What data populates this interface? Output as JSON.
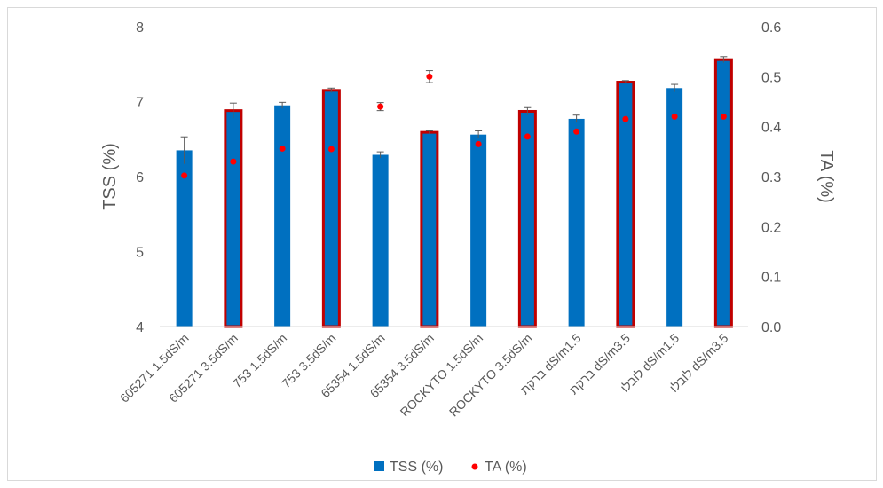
{
  "chart_data": {
    "type": "bar",
    "title": "",
    "categories": [
      "605271 1.5dS/m",
      "605271 3.5dS/m",
      "753 1.5dS/m",
      "753 3.5dS/m",
      "65354 1.5dS/m",
      "65354 3.5dS/m",
      "ROCKYTO 1.5dS/m",
      "ROCKYTO 3.5dS/m",
      "ברקת dS/m1.5",
      "ברקת dS/m3.5",
      "לובלו dS/m1.5",
      "לובלו dS/m3.5"
    ],
    "highlighted": [
      false,
      true,
      false,
      true,
      false,
      true,
      false,
      true,
      false,
      true,
      false,
      true
    ],
    "series": [
      {
        "name": "TSS (%)",
        "type": "bar",
        "axis": "left",
        "color": "#0070c0",
        "highlight_color": "#c00000",
        "values": [
          6.35,
          6.88,
          6.95,
          7.15,
          6.29,
          6.59,
          6.56,
          6.87,
          6.77,
          7.26,
          7.18,
          7.56
        ],
        "errors": [
          0.18,
          0.1,
          0.04,
          0.03,
          0.04,
          0.02,
          0.05,
          0.05,
          0.05,
          0.02,
          0.05,
          0.04
        ]
      },
      {
        "name": "TA (%)",
        "type": "scatter",
        "axis": "right",
        "color": "#ff0000",
        "values": [
          0.302,
          0.33,
          0.356,
          0.355,
          0.44,
          0.5,
          0.365,
          0.38,
          0.39,
          0.415,
          0.42,
          0.42
        ],
        "errors": [
          0,
          0,
          0,
          0,
          0.008,
          0.012,
          0,
          0,
          0,
          0,
          0,
          0
        ]
      }
    ],
    "ylabel": "TSS (%)",
    "ylim": [
      4,
      8
    ],
    "yticks": [
      "4",
      "5",
      "6",
      "7",
      "8"
    ],
    "y2label": "TA (%)",
    "y2lim": [
      0,
      0.6
    ],
    "y2ticks": [
      "0.0",
      "0.1",
      "0.2",
      "0.3",
      "0.4",
      "0.5",
      "0.6"
    ],
    "grid": false,
    "legend_position": "bottom"
  }
}
